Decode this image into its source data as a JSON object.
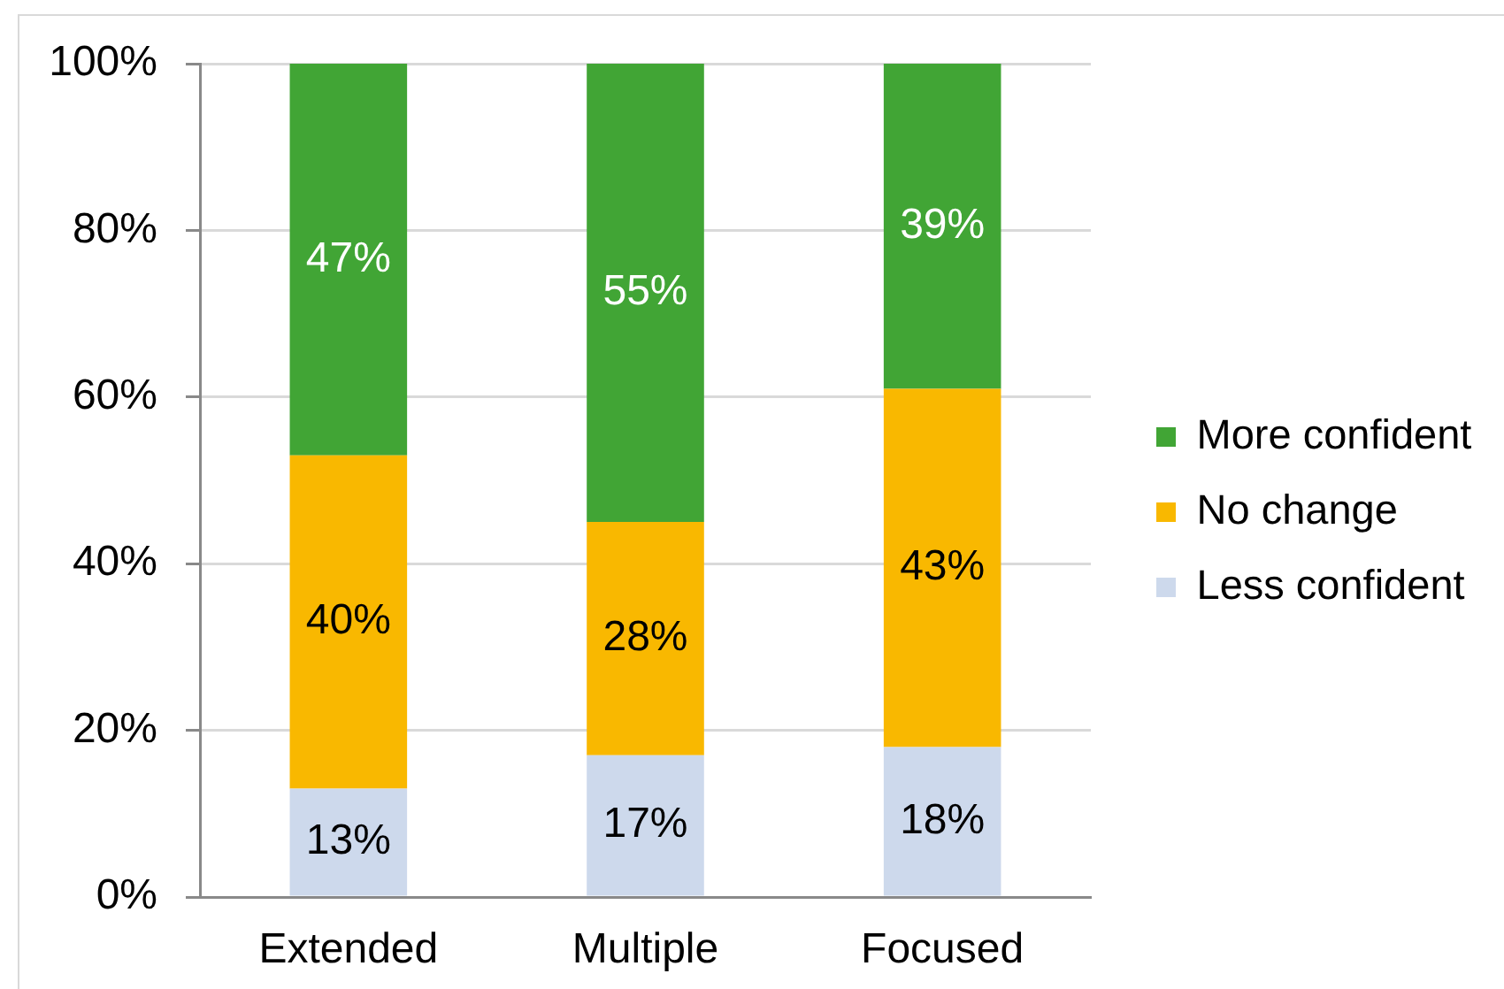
{
  "chart_data": {
    "type": "bar",
    "categories": [
      "Extended",
      "Multiple",
      "Focused"
    ],
    "stacked": true,
    "series": [
      {
        "name": "Less confident",
        "color": "#cdd9ec",
        "values": [
          13,
          17,
          18
        ],
        "value_labels": [
          "13%",
          "17%",
          "18%"
        ]
      },
      {
        "name": "No change",
        "color": "#f9b800",
        "values": [
          40,
          28,
          43
        ],
        "value_labels": [
          "40%",
          "28%",
          "43%"
        ]
      },
      {
        "name": "More confident",
        "color": "#41a535",
        "values": [
          47,
          55,
          39
        ],
        "value_labels": [
          "47%",
          "55%",
          "39%"
        ]
      }
    ],
    "ylim": [
      0,
      100
    ],
    "yticks": [
      {
        "value": 0,
        "label": "0%"
      },
      {
        "value": 20,
        "label": "20%"
      },
      {
        "value": 40,
        "label": "40%"
      },
      {
        "value": 60,
        "label": "60%"
      },
      {
        "value": 80,
        "label": "80%"
      },
      {
        "value": 100,
        "label": "100%"
      }
    ],
    "grid": "y",
    "legend": "right"
  }
}
